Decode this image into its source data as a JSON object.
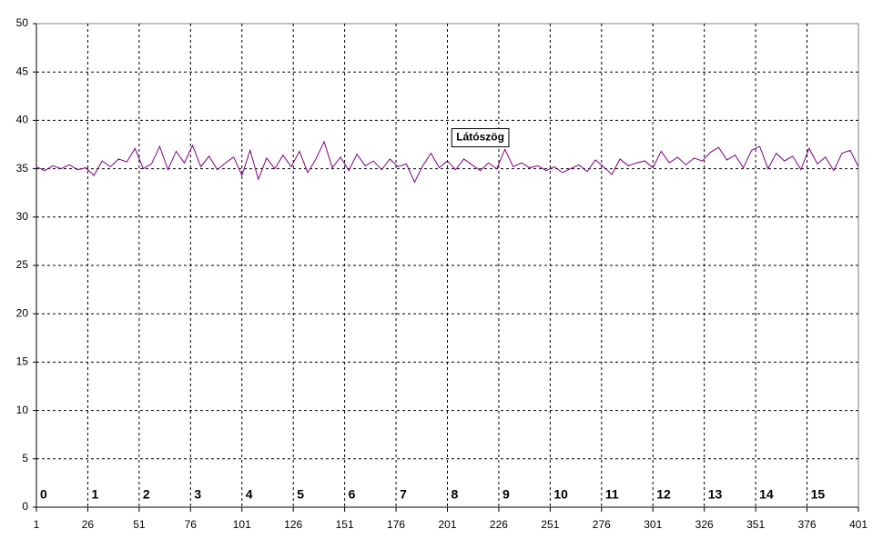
{
  "chart_data": {
    "type": "line",
    "x": [
      1,
      5,
      9,
      13,
      17,
      21,
      25,
      29,
      33,
      37,
      41,
      45,
      49,
      53,
      57,
      61,
      65,
      69,
      73,
      77,
      81,
      85,
      89,
      93,
      97,
      101,
      105,
      109,
      113,
      117,
      121,
      125,
      129,
      133,
      137,
      141,
      145,
      149,
      153,
      157,
      161,
      165,
      169,
      173,
      177,
      181,
      185,
      189,
      193,
      197,
      201,
      205,
      209,
      213,
      217,
      221,
      225,
      229,
      233,
      237,
      241,
      245,
      249,
      253,
      257,
      261,
      265,
      269,
      273,
      277,
      281,
      285,
      289,
      293,
      297,
      301,
      305,
      309,
      313,
      317,
      321,
      325,
      329,
      333,
      337,
      341,
      345,
      349,
      353,
      357,
      361,
      365,
      369,
      373,
      377,
      381,
      385,
      389,
      393,
      397,
      401
    ],
    "series": [
      {
        "color": "#800080",
        "values": [
          35.2,
          34.8,
          35.3,
          35.0,
          35.4,
          34.9,
          35.1,
          34.3,
          35.8,
          35.2,
          36.0,
          35.7,
          37.1,
          35.0,
          35.5,
          37.3,
          34.9,
          36.8,
          35.6,
          37.4,
          35.2,
          36.3,
          34.9,
          35.6,
          36.2,
          34.3,
          36.9,
          33.9,
          36.1,
          35.0,
          36.4,
          35.2,
          36.8,
          34.6,
          36.0,
          37.8,
          35.1,
          36.2,
          34.8,
          36.5,
          35.3,
          35.8,
          34.9,
          36.0,
          35.2,
          35.5,
          33.6,
          35.3,
          36.6,
          35.1,
          35.8,
          34.9,
          36.0,
          35.4,
          34.8,
          35.6,
          35.0,
          37.0,
          35.2,
          35.6,
          35.1,
          35.3,
          34.8,
          35.2,
          34.6,
          35.0,
          35.4,
          34.7,
          35.9,
          35.2,
          34.4,
          36.0,
          35.3,
          35.6,
          35.8,
          35.1,
          36.8,
          35.6,
          36.2,
          35.4,
          36.1,
          35.8,
          36.7,
          37.2,
          35.9,
          36.4,
          35.1,
          36.9,
          37.3,
          35.0,
          36.6,
          35.8,
          36.3,
          34.9,
          37.1,
          35.5,
          36.2,
          34.8,
          36.6,
          36.9,
          35.2
        ]
      }
    ],
    "xlim": [
      1,
      401
    ],
    "xticks": [
      1,
      26,
      51,
      76,
      101,
      126,
      151,
      176,
      201,
      226,
      251,
      276,
      301,
      326,
      351,
      376,
      401
    ],
    "ylim": [
      0,
      50
    ],
    "yticks": [
      0,
      5,
      10,
      15,
      20,
      25,
      30,
      35,
      40,
      45,
      50
    ],
    "grid": true,
    "annotations": [
      {
        "text": "Látószög",
        "x": 217,
        "y": 38.2
      }
    ],
    "segment_labels": [
      {
        "text": "0",
        "x": 1
      },
      {
        "text": "1",
        "x": 26
      },
      {
        "text": "2",
        "x": 51
      },
      {
        "text": "3",
        "x": 76
      },
      {
        "text": "4",
        "x": 101
      },
      {
        "text": "5",
        "x": 126
      },
      {
        "text": "6",
        "x": 151
      },
      {
        "text": "7",
        "x": 176
      },
      {
        "text": "8",
        "x": 201
      },
      {
        "text": "9",
        "x": 226
      },
      {
        "text": "10",
        "x": 251
      },
      {
        "text": "11",
        "x": 276
      },
      {
        "text": "12",
        "x": 301
      },
      {
        "text": "13",
        "x": 326
      },
      {
        "text": "14",
        "x": 351
      },
      {
        "text": "15",
        "x": 376
      }
    ]
  }
}
